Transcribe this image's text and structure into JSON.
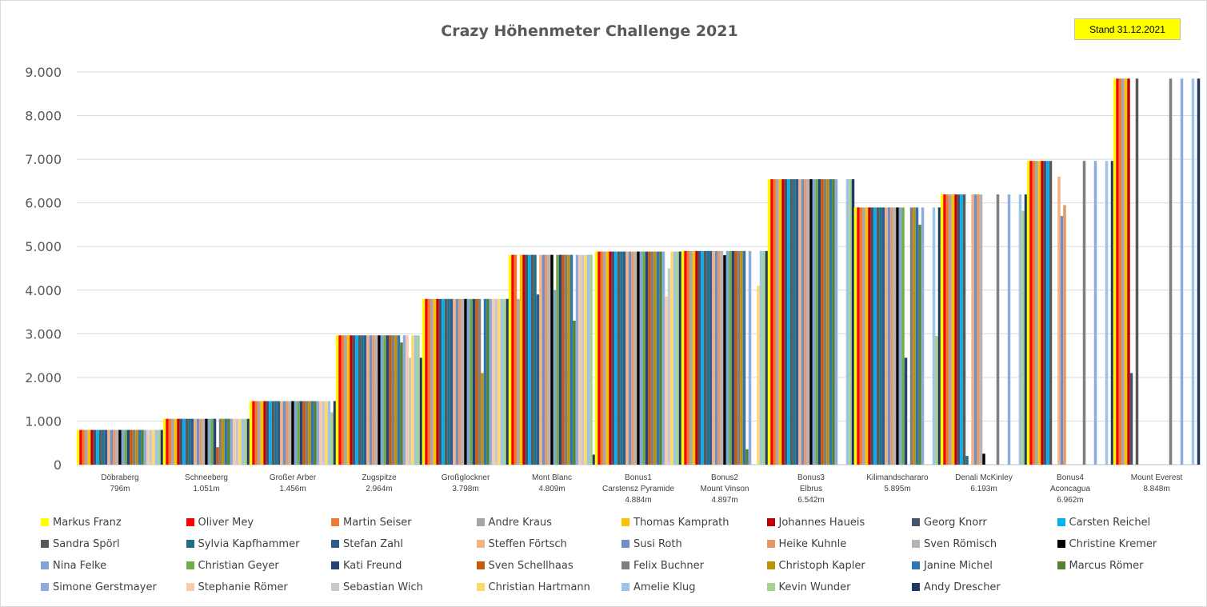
{
  "chart_data": {
    "type": "bar",
    "title": "Crazy Höhenmeter Challenge 2021",
    "badge": "Stand 31.12.2021",
    "ylim": [
      0,
      9000
    ],
    "yticks": [
      "0",
      "1.000",
      "2.000",
      "3.000",
      "4.000",
      "5.000",
      "6.000",
      "7.000",
      "8.000",
      "9.000"
    ],
    "grid": true,
    "legend_position": "bottom",
    "categories": [
      [
        "Döbraberg",
        "796m"
      ],
      [
        "Schneeberg",
        "1.051m"
      ],
      [
        "Großer Arber",
        "1.456m"
      ],
      [
        "Zugspitze",
        "2.964m"
      ],
      [
        "Großglockner",
        "3.798m"
      ],
      [
        "Mont Blanc",
        "4.809m"
      ],
      [
        "Bonus1",
        "Carstensz Pyramide",
        "4.884m"
      ],
      [
        "Bonus2",
        "Mount Vinson",
        "4.897m"
      ],
      [
        "Bonus3",
        "Elbrus",
        "6.542m"
      ],
      [
        "Kilimandschararo",
        "5.895m"
      ],
      [
        "Denali McKinley",
        "6.193m"
      ],
      [
        "Bonus4",
        "Aconcagua",
        "6.962m"
      ],
      [
        "Mount Everest",
        "8.848m"
      ]
    ],
    "series": [
      {
        "name": "Markus Franz",
        "color": "#ffff00",
        "values": [
          796,
          1051,
          1456,
          2964,
          3798,
          4809,
          4884,
          4897,
          6542,
          5895,
          6193,
          6962,
          8848
        ]
      },
      {
        "name": "Oliver Mey",
        "color": "#ff0000",
        "values": [
          796,
          1051,
          1456,
          2964,
          3798,
          4809,
          4884,
          4897,
          6542,
          5895,
          6193,
          6962,
          8848
        ]
      },
      {
        "name": "Martin Seiser",
        "color": "#ed7d31",
        "values": [
          796,
          1051,
          1456,
          2964,
          3798,
          4809,
          4884,
          4897,
          6542,
          5895,
          6193,
          6962,
          8848
        ]
      },
      {
        "name": "Andre Kraus",
        "color": "#a5a5a5",
        "values": [
          796,
          1051,
          1456,
          2964,
          3798,
          3798,
          4884,
          4897,
          6542,
          5895,
          6193,
          6962,
          8848
        ]
      },
      {
        "name": "Thomas Kamprath",
        "color": "#ffc000",
        "values": [
          796,
          1051,
          1456,
          2964,
          3798,
          4809,
          4884,
          4897,
          6542,
          5895,
          6193,
          6962,
          8848
        ]
      },
      {
        "name": "Johannes Haueis",
        "color": "#c00000",
        "values": [
          796,
          1051,
          1456,
          2964,
          3798,
          4809,
          4884,
          4897,
          6542,
          5895,
          6193,
          6962,
          8848
        ]
      },
      {
        "name": "Georg Knorr",
        "color": "#44546a",
        "values": [
          796,
          1051,
          1456,
          2964,
          3798,
          4809,
          4884,
          4897,
          6542,
          5895,
          6193,
          6962,
          2100
        ]
      },
      {
        "name": "Carsten Reichel",
        "color": "#00b0f0",
        "values": [
          796,
          1051,
          1456,
          2964,
          3798,
          4809,
          4884,
          4897,
          6542,
          5895,
          6193,
          6962,
          0
        ]
      },
      {
        "name": "Sandra Spörl",
        "color": "#595959",
        "values": [
          796,
          1051,
          1456,
          2964,
          3798,
          4809,
          4884,
          4897,
          6542,
          5895,
          6193,
          6962,
          8848
        ]
      },
      {
        "name": "Sylvia Kapfhammer",
        "color": "#1f6f8b",
        "values": [
          796,
          1051,
          1456,
          2964,
          3798,
          4809,
          4884,
          4897,
          6542,
          5895,
          200,
          0,
          0
        ]
      },
      {
        "name": "Stefan Zahl",
        "color": "#2e5c8a",
        "values": [
          796,
          1051,
          1456,
          2964,
          3798,
          3900,
          4884,
          4897,
          6542,
          5895,
          0,
          0,
          0
        ]
      },
      {
        "name": "Steffen Förtsch",
        "color": "#f4b183",
        "values": [
          796,
          1051,
          1456,
          2964,
          3798,
          4809,
          4884,
          4897,
          6542,
          5895,
          6193,
          6600,
          0
        ]
      },
      {
        "name": "Susi Roth",
        "color": "#6f8fc9",
        "values": [
          796,
          1051,
          1456,
          2964,
          3798,
          4809,
          4884,
          4897,
          6542,
          5895,
          6193,
          5700,
          0
        ]
      },
      {
        "name": "Heike Kuhnle",
        "color": "#e59866",
        "values": [
          796,
          1051,
          1456,
          2964,
          3798,
          4809,
          4884,
          4897,
          6542,
          5895,
          6193,
          5950,
          0
        ]
      },
      {
        "name": "Sven Römisch",
        "color": "#b4b4b4",
        "values": [
          796,
          1051,
          1456,
          2964,
          3798,
          4809,
          4884,
          4897,
          6542,
          5895,
          6193,
          0,
          0
        ]
      },
      {
        "name": "Christine Kremer",
        "color": "#000000",
        "values": [
          796,
          1051,
          1456,
          2964,
          3798,
          4809,
          4884,
          4800,
          6542,
          5895,
          250,
          0,
          0
        ]
      },
      {
        "name": "Nina Felke",
        "color": "#7fa6d8",
        "values": [
          796,
          1051,
          1456,
          2964,
          3798,
          4000,
          4884,
          4897,
          6542,
          5895,
          0,
          0,
          0
        ]
      },
      {
        "name": "Christian Geyer",
        "color": "#70ad47",
        "values": [
          796,
          1051,
          1456,
          2964,
          3798,
          4809,
          4884,
          4897,
          6542,
          5895,
          0,
          0,
          0
        ]
      },
      {
        "name": "Kati Freund",
        "color": "#264478",
        "values": [
          796,
          1051,
          1456,
          2964,
          3798,
          4809,
          4884,
          4897,
          6542,
          2450,
          0,
          0,
          0
        ]
      },
      {
        "name": "Sven Schellhaas",
        "color": "#c55a11",
        "values": [
          796,
          400,
          1456,
          2964,
          3798,
          4809,
          4884,
          4897,
          6542,
          0,
          0,
          0,
          0
        ]
      },
      {
        "name": "Felix Buchner",
        "color": "#7f7f7f",
        "values": [
          796,
          1051,
          1456,
          2964,
          3798,
          4809,
          4884,
          4897,
          6542,
          5895,
          6193,
          6962,
          8848
        ]
      },
      {
        "name": "Christoph Kapler",
        "color": "#bf9000",
        "values": [
          796,
          1051,
          1456,
          2964,
          2100,
          4809,
          4884,
          4897,
          6542,
          5895,
          0,
          0,
          0
        ]
      },
      {
        "name": "Janine Michel",
        "color": "#2e75b6",
        "values": [
          796,
          1051,
          1456,
          2964,
          3798,
          4809,
          4884,
          4897,
          6542,
          5895,
          0,
          0,
          0
        ]
      },
      {
        "name": "Marcus Römer",
        "color": "#548235",
        "values": [
          796,
          1051,
          1456,
          2800,
          3798,
          3300,
          4884,
          350,
          6542,
          5500,
          0,
          0,
          0
        ]
      },
      {
        "name": "Simone Gerstmayer",
        "color": "#8faadc",
        "values": [
          796,
          1051,
          1456,
          2964,
          3798,
          4809,
          4884,
          4897,
          6542,
          5895,
          6193,
          6962,
          8848
        ]
      },
      {
        "name": "Stephanie Römer",
        "color": "#f8cbad",
        "values": [
          796,
          1051,
          1456,
          2964,
          3798,
          4809,
          3850,
          0,
          0,
          0,
          0,
          0,
          0
        ]
      },
      {
        "name": "Sebastian Wich",
        "color": "#c9c9c9",
        "values": [
          796,
          1051,
          1456,
          2450,
          3798,
          4809,
          4500,
          0,
          0,
          0,
          0,
          0,
          0
        ]
      },
      {
        "name": "Christian Hartmann",
        "color": "#ffd966",
        "values": [
          796,
          1051,
          1456,
          2964,
          3798,
          4809,
          4884,
          4100,
          0,
          0,
          0,
          0,
          0
        ]
      },
      {
        "name": "Amelie Klug",
        "color": "#9dc3e6",
        "values": [
          796,
          1051,
          1456,
          2964,
          3798,
          4809,
          4884,
          4897,
          6542,
          5895,
          6193,
          6962,
          8848
        ]
      },
      {
        "name": "Kevin Wunder",
        "color": "#a9d18e",
        "values": [
          796,
          1051,
          1200,
          2964,
          3798,
          4809,
          4884,
          4897,
          6542,
          2950,
          5820,
          0,
          0
        ]
      },
      {
        "name": "Andy Drescher",
        "color": "#203864",
        "values": [
          796,
          1051,
          1456,
          2450,
          3798,
          230,
          4884,
          4897,
          6542,
          5895,
          6193,
          6962,
          8848
        ]
      }
    ]
  }
}
